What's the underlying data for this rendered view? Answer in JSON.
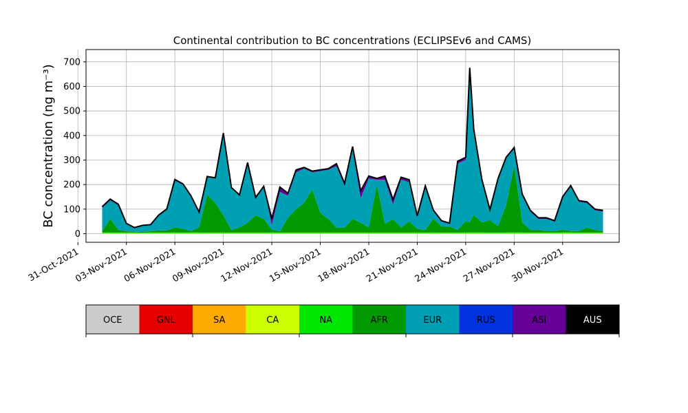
{
  "chart_data": {
    "type": "area",
    "stacked": true,
    "title": "Continental contribution to BC concentrations (ECLIPSEv6 and CAMS)",
    "ylabel": "BC concentration (ng m⁻³)",
    "xlabel": "",
    "ylim": [
      -35,
      750
    ],
    "xlim": [
      "2021-10-31T12:00",
      "2021-12-03T12:00"
    ],
    "yticks": [
      0,
      100,
      200,
      300,
      400,
      500,
      600,
      700
    ],
    "xticks": [
      "31-Oct-2021",
      "03-Nov-2021",
      "06-Nov-2021",
      "09-Nov-2021",
      "12-Nov-2021",
      "15-Nov-2021",
      "18-Nov-2021",
      "21-Nov-2021",
      "24-Nov-2021",
      "27-Nov-2021",
      "30-Nov-2021"
    ],
    "grid": true,
    "x": [
      "2021-11-01T12:00",
      "2021-11-02T00:00",
      "2021-11-02T12:00",
      "2021-11-03T00:00",
      "2021-11-03T12:00",
      "2021-11-04T00:00",
      "2021-11-04T12:00",
      "2021-11-05T00:00",
      "2021-11-05T12:00",
      "2021-11-06T00:00",
      "2021-11-06T12:00",
      "2021-11-07T00:00",
      "2021-11-07T12:00",
      "2021-11-08T00:00",
      "2021-11-08T12:00",
      "2021-11-09T00:00",
      "2021-11-09T12:00",
      "2021-11-10T00:00",
      "2021-11-10T12:00",
      "2021-11-11T00:00",
      "2021-11-11T12:00",
      "2021-11-12T00:00",
      "2021-11-12T12:00",
      "2021-11-13T00:00",
      "2021-11-13T12:00",
      "2021-11-14T00:00",
      "2021-11-14T12:00",
      "2021-11-15T00:00",
      "2021-11-15T12:00",
      "2021-11-16T00:00",
      "2021-11-16T12:00",
      "2021-11-17T00:00",
      "2021-11-17T12:00",
      "2021-11-18T00:00",
      "2021-11-18T12:00",
      "2021-11-19T00:00",
      "2021-11-19T12:00",
      "2021-11-20T00:00",
      "2021-11-20T12:00",
      "2021-11-21T00:00",
      "2021-11-21T12:00",
      "2021-11-22T00:00",
      "2021-11-22T12:00",
      "2021-11-23T00:00",
      "2021-11-23T12:00",
      "2021-11-24T00:00",
      "2021-11-24T06:00",
      "2021-11-24T12:00",
      "2021-11-25T00:00",
      "2021-11-25T12:00",
      "2021-11-26T00:00",
      "2021-11-26T12:00",
      "2021-11-27T00:00",
      "2021-11-27T12:00",
      "2021-11-28T00:00",
      "2021-11-28T12:00",
      "2021-11-29T00:00",
      "2021-11-29T12:00",
      "2021-11-30T00:00",
      "2021-11-30T12:00",
      "2021-12-01T00:00",
      "2021-12-01T12:00",
      "2021-12-02T00:00",
      "2021-12-02T12:00"
    ],
    "series": [
      {
        "name": "OCE",
        "color": "#cccccc",
        "values": [
          0,
          0,
          0,
          0,
          0,
          0,
          0,
          0,
          0,
          0,
          0,
          0,
          0,
          0,
          0,
          0,
          0,
          0,
          0,
          0,
          0,
          0,
          0,
          0,
          0,
          0,
          0,
          0,
          0,
          0,
          0,
          0,
          0,
          0,
          0,
          0,
          0,
          0,
          0,
          0,
          0,
          0,
          0,
          0,
          0,
          0,
          0,
          0,
          0,
          0,
          0,
          0,
          0,
          0,
          0,
          0,
          0,
          0,
          0,
          0,
          0,
          0,
          0,
          0
        ]
      },
      {
        "name": "GNL",
        "color": "#e60000",
        "values": [
          0,
          0,
          0,
          0,
          0,
          0,
          0,
          0,
          0,
          0,
          0,
          0,
          0,
          0,
          0,
          0,
          0,
          0,
          0,
          0,
          0,
          0,
          0,
          0,
          0,
          0,
          0,
          0,
          0,
          0,
          0,
          0,
          0,
          0,
          0,
          0,
          0,
          0,
          0,
          0,
          0,
          0,
          0,
          0,
          0,
          0,
          0,
          0,
          0,
          0,
          0,
          0,
          0,
          0,
          0,
          0,
          0,
          0,
          0,
          0,
          0,
          0,
          0,
          0
        ]
      },
      {
        "name": "SA",
        "color": "#ffaa00",
        "values": [
          0,
          0,
          0,
          0,
          0,
          0,
          0,
          0,
          0,
          0,
          0,
          0,
          0,
          0,
          0,
          0,
          0,
          0,
          0,
          0,
          0,
          0,
          0,
          0,
          0,
          0,
          0,
          0,
          0,
          0,
          0,
          0,
          0,
          0,
          0,
          0,
          0,
          0,
          0,
          0,
          0,
          0,
          0,
          0,
          0,
          0,
          0,
          0,
          0,
          0,
          0,
          0,
          0,
          0,
          0,
          0,
          0,
          0,
          0,
          0,
          0,
          0,
          0,
          0
        ]
      },
      {
        "name": "CA",
        "color": "#ccff00",
        "values": [
          2,
          2,
          2,
          2,
          2,
          2,
          2,
          2,
          2,
          2,
          2,
          2,
          2,
          2,
          2,
          2,
          2,
          2,
          2,
          2,
          2,
          2,
          2,
          2,
          2,
          2,
          2,
          2,
          2,
          2,
          2,
          2,
          2,
          2,
          2,
          2,
          2,
          2,
          2,
          2,
          2,
          2,
          2,
          2,
          2,
          2,
          2,
          2,
          2,
          2,
          2,
          2,
          2,
          2,
          2,
          2,
          2,
          2,
          2,
          2,
          2,
          2,
          2,
          2
        ]
      },
      {
        "name": "NA",
        "color": "#00e600",
        "values": [
          3,
          4,
          3,
          3,
          3,
          2,
          3,
          3,
          3,
          4,
          3,
          4,
          4,
          3,
          3,
          3,
          3,
          3,
          3,
          3,
          3,
          4,
          3,
          3,
          3,
          3,
          3,
          3,
          3,
          3,
          3,
          3,
          3,
          3,
          3,
          3,
          3,
          3,
          3,
          3,
          3,
          4,
          3,
          3,
          3,
          4,
          4,
          4,
          4,
          3,
          3,
          4,
          4,
          4,
          3,
          3,
          3,
          3,
          4,
          4,
          3,
          3,
          3,
          3
        ]
      },
      {
        "name": "AFR",
        "color": "#009900",
        "values": [
          5,
          55,
          10,
          5,
          3,
          3,
          5,
          8,
          8,
          20,
          15,
          5,
          20,
          155,
          120,
          70,
          10,
          20,
          40,
          70,
          55,
          10,
          5,
          60,
          95,
          120,
          175,
          80,
          55,
          20,
          20,
          55,
          40,
          20,
          195,
          35,
          55,
          20,
          45,
          15,
          10,
          55,
          25,
          25,
          10,
          45,
          40,
          70,
          40,
          50,
          25,
          110,
          270,
          40,
          10,
          10,
          5,
          5,
          10,
          5,
          5,
          20,
          10,
          5
        ]
      },
      {
        "name": "EUR",
        "color": "#00a0b4",
        "values": [
          95,
          75,
          100,
          30,
          15,
          25,
          25,
          60,
          85,
          190,
          180,
          140,
          60,
          70,
          100,
          330,
          170,
          130,
          240,
          70,
          130,
          20,
          160,
          90,
          150,
          140,
          70,
          170,
          200,
          250,
          170,
          280,
          100,
          200,
          20,
          180,
          60,
          195,
          160,
          50,
          175,
          30,
          20,
          10,
          270,
          250,
          620,
          340,
          170,
          40,
          190,
          190,
          70,
          110,
          75,
          45,
          50,
          40,
          130,
          180,
          120,
          100,
          80,
          80
        ]
      },
      {
        "name": "RUS",
        "color": "#0033dd",
        "values": [
          0,
          0,
          0,
          0,
          0,
          0,
          0,
          0,
          0,
          0,
          0,
          0,
          0,
          0,
          0,
          0,
          0,
          0,
          0,
          0,
          0,
          0,
          0,
          0,
          0,
          0,
          0,
          0,
          0,
          0,
          0,
          0,
          0,
          0,
          0,
          0,
          0,
          0,
          0,
          0,
          0,
          0,
          0,
          0,
          0,
          0,
          0,
          0,
          0,
          0,
          0,
          0,
          0,
          0,
          0,
          0,
          0,
          0,
          0,
          0,
          0,
          0,
          0,
          0
        ]
      },
      {
        "name": "ASI",
        "color": "#660099",
        "values": [
          5,
          5,
          5,
          2,
          2,
          2,
          2,
          3,
          3,
          5,
          3,
          3,
          2,
          3,
          3,
          5,
          3,
          3,
          5,
          3,
          3,
          25,
          20,
          10,
          10,
          5,
          5,
          5,
          5,
          10,
          10,
          15,
          30,
          10,
          5,
          15,
          20,
          10,
          10,
          3,
          5,
          5,
          3,
          3,
          10,
          10,
          10,
          10,
          5,
          3,
          5,
          5,
          5,
          5,
          5,
          5,
          5,
          3,
          5,
          5,
          5,
          5,
          5,
          5
        ]
      },
      {
        "name": "AUS",
        "color": "#000000",
        "values": [
          0,
          0,
          0,
          0,
          0,
          0,
          0,
          0,
          0,
          0,
          0,
          0,
          0,
          0,
          0,
          0,
          0,
          0,
          0,
          0,
          0,
          0,
          0,
          0,
          0,
          0,
          0,
          0,
          0,
          0,
          0,
          0,
          0,
          0,
          0,
          0,
          0,
          0,
          0,
          0,
          0,
          0,
          0,
          0,
          0,
          0,
          0,
          0,
          0,
          0,
          0,
          0,
          0,
          0,
          0,
          0,
          0,
          0,
          0,
          0,
          0,
          0,
          0,
          0
        ]
      }
    ],
    "legend": {
      "placement": "bottom",
      "entries": [
        "OCE",
        "GNL",
        "SA",
        "CA",
        "NA",
        "AFR",
        "EUR",
        "RUS",
        "ASI",
        "AUS"
      ]
    }
  }
}
